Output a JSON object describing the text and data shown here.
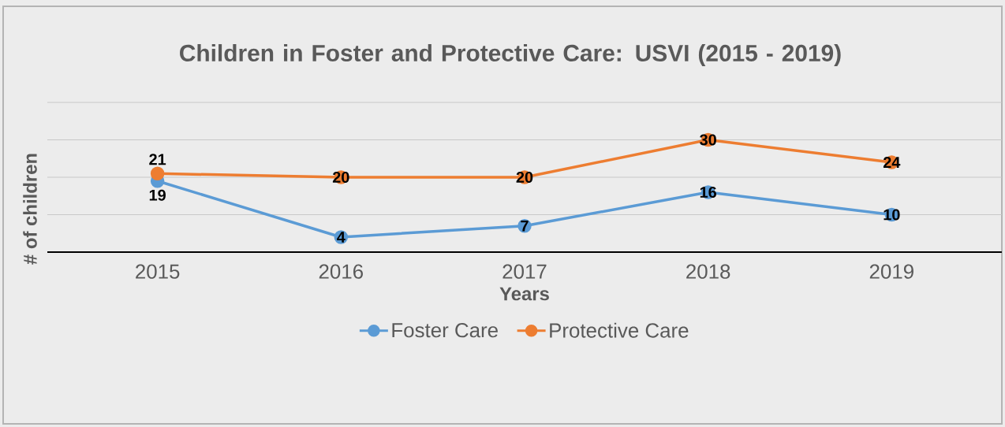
{
  "chart_data": {
    "type": "line",
    "title": "Children in Foster and Protective Care: USVI (2015 - 2019)",
    "xlabel": "Years",
    "ylabel": "# of children",
    "categories": [
      "2015",
      "2016",
      "2017",
      "2018",
      "2019"
    ],
    "series": [
      {
        "name": "Foster Care",
        "color": "#5b9bd5",
        "values": [
          19,
          4,
          7,
          16,
          10
        ]
      },
      {
        "name": "Protective Care",
        "color": "#ed7d31",
        "values": [
          21,
          20,
          20,
          30,
          24
        ]
      }
    ],
    "ylim": [
      0,
      40
    ],
    "yticks": [
      {
        "value": 0,
        "label": null
      },
      {
        "value": 10,
        "label": null
      },
      {
        "value": 20,
        "label": null
      },
      {
        "value": 30,
        "label": null
      },
      {
        "value": 40,
        "label": null
      }
    ],
    "tick_labels": "x",
    "grid": "y",
    "legend": "bottom",
    "marker": "circle",
    "line_style": "solid",
    "data_labels": true
  }
}
